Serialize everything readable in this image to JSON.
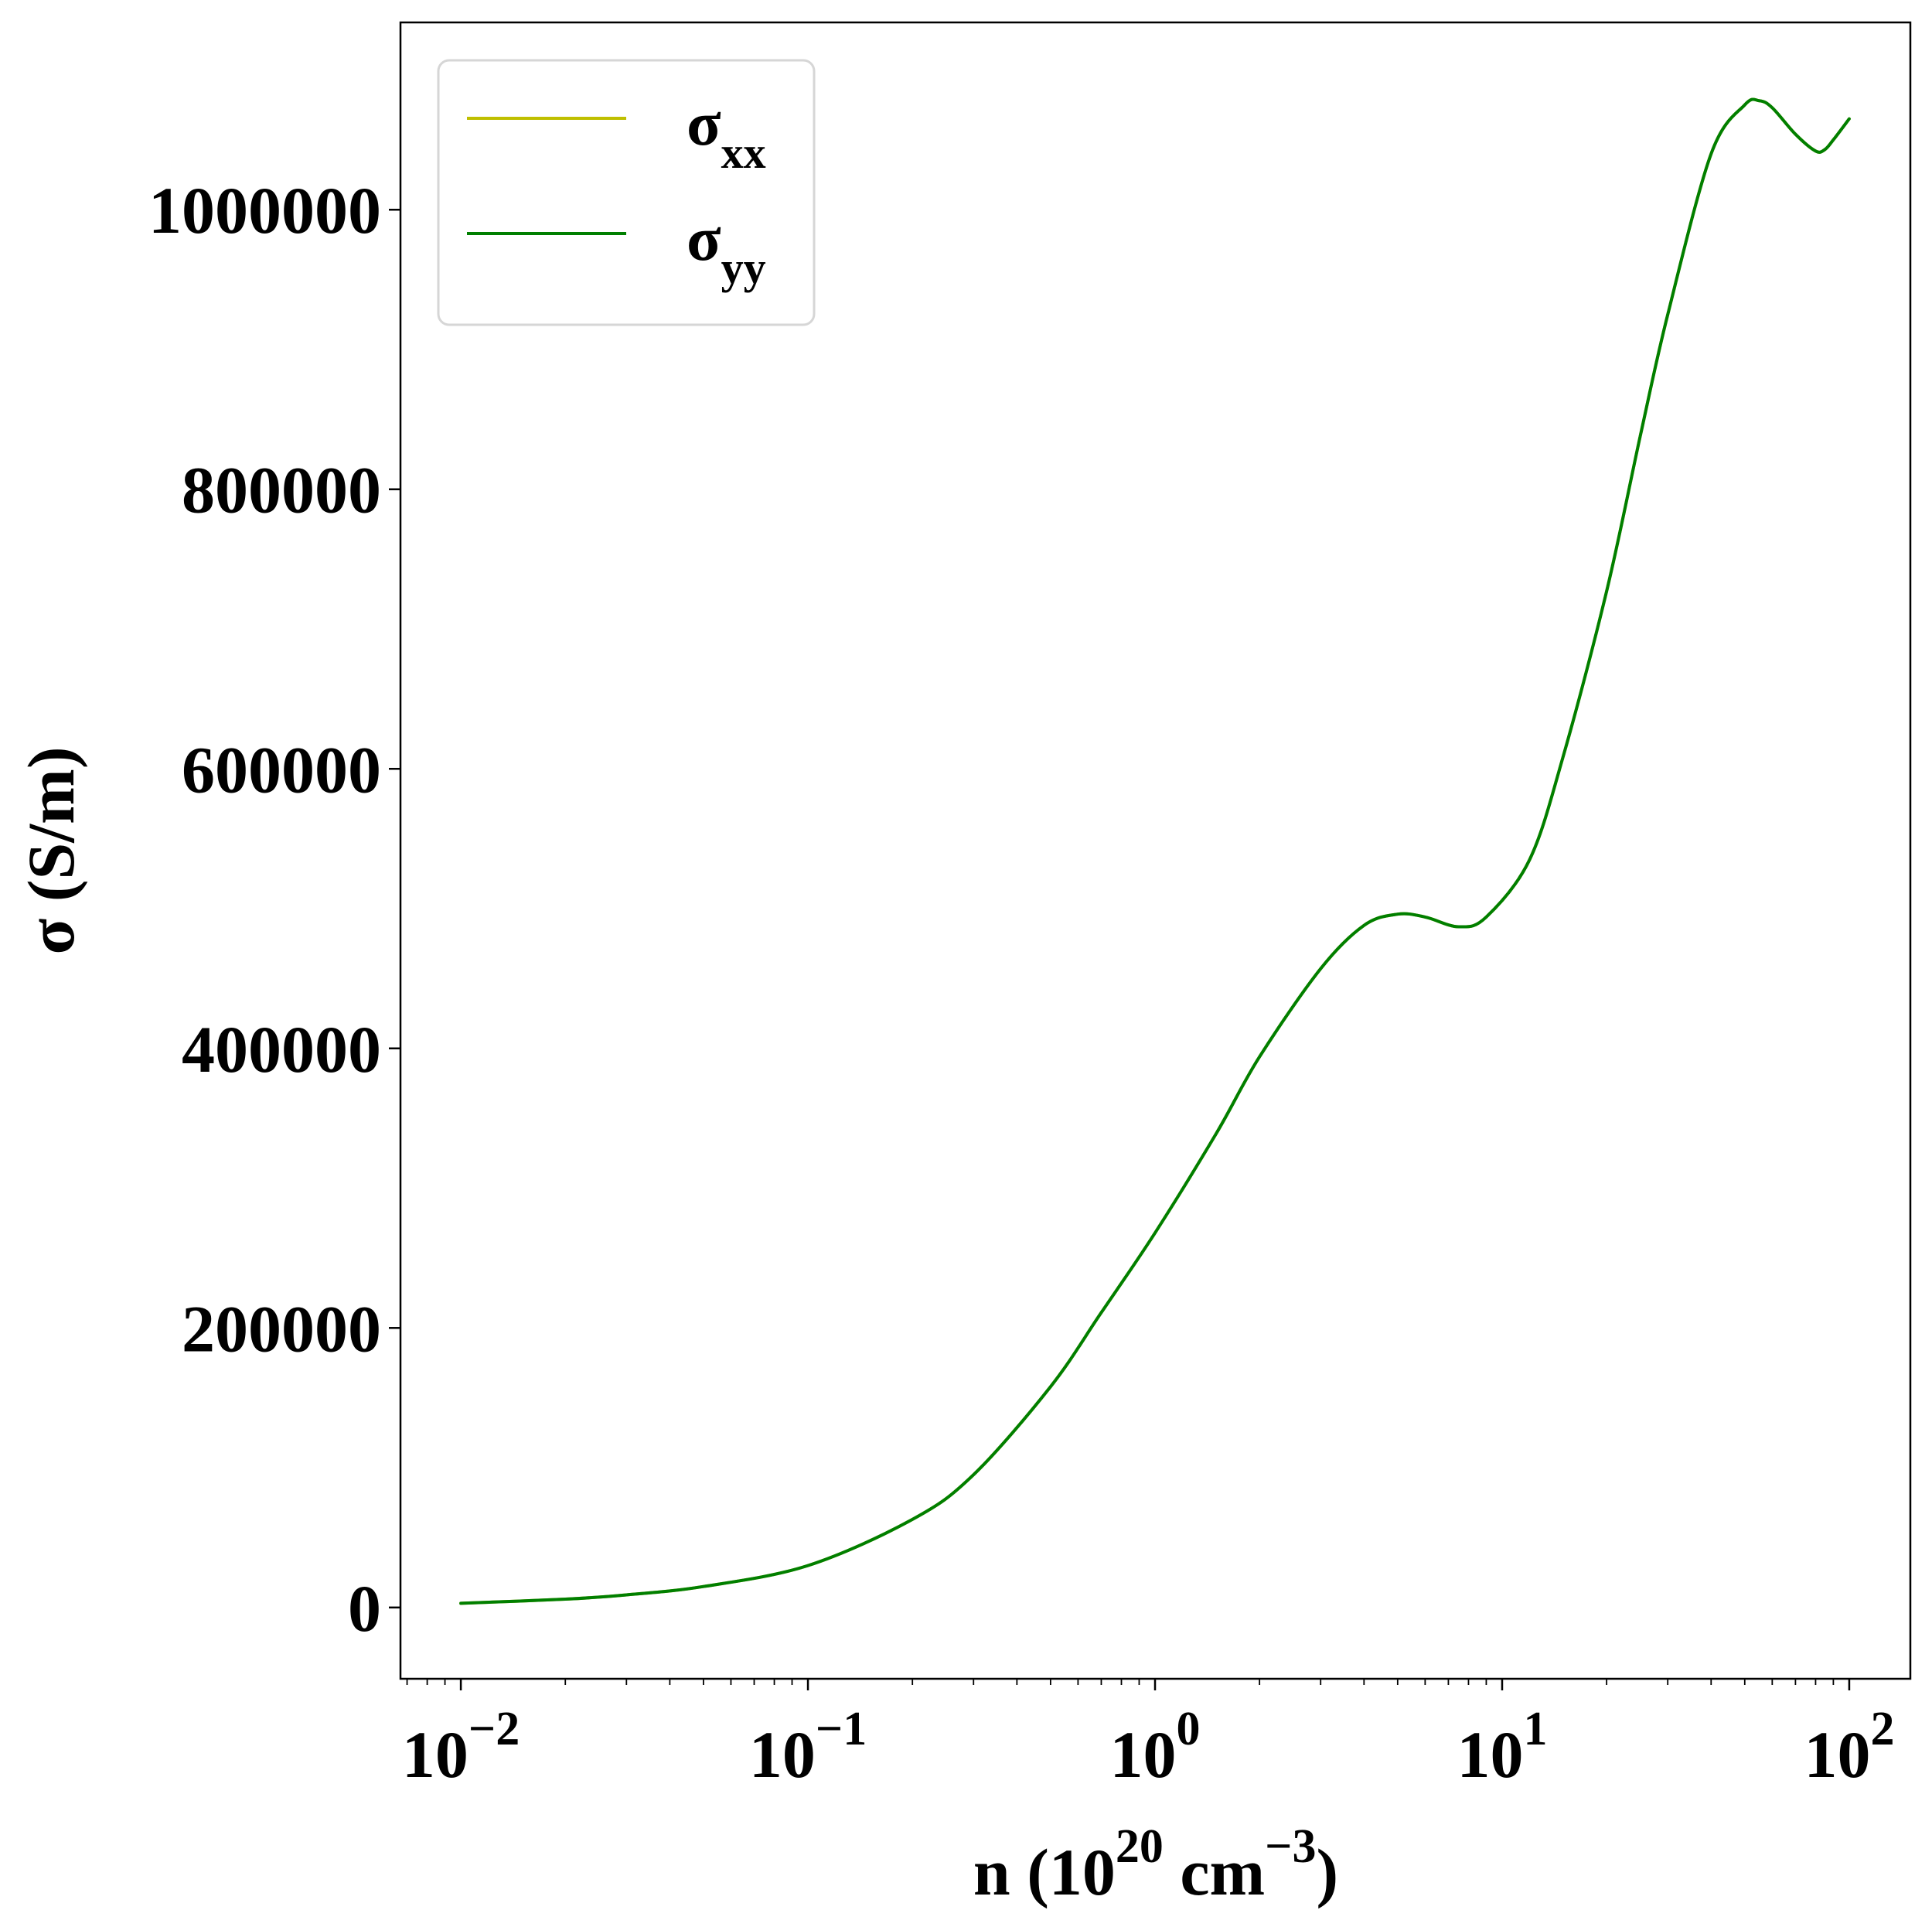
{
  "chart_data": {
    "type": "line",
    "xscale": "log",
    "xlim": [
      0.0067,
      150
    ],
    "ylim": [
      -51000,
      1134000
    ],
    "x_ticks": [
      {
        "value": 0.01,
        "base": "10",
        "exp": "−2"
      },
      {
        "value": 0.1,
        "base": "10",
        "exp": "−1"
      },
      {
        "value": 1,
        "base": "10",
        "exp": "0"
      },
      {
        "value": 10,
        "base": "10",
        "exp": "1"
      },
      {
        "value": 100,
        "base": "10",
        "exp": "2"
      }
    ],
    "y_ticks": [
      {
        "value": 0,
        "label": "0"
      },
      {
        "value": 200000,
        "label": "200000"
      },
      {
        "value": 400000,
        "label": "400000"
      },
      {
        "value": 600000,
        "label": "600000"
      },
      {
        "value": 800000,
        "label": "800000"
      },
      {
        "value": 1000000,
        "label": "1000000"
      }
    ],
    "xlabel": {
      "pre": "n (10",
      "sup1": "20",
      "mid": " cm",
      "sup2": "−3",
      "post": ")"
    },
    "ylabel": "σ (S/m)",
    "grid": false,
    "legend_position": "upper-left",
    "series": [
      {
        "name": "σ",
        "sub": "xx",
        "color": "#bfbf00",
        "x": [
          0.01,
          0.02,
          0.03,
          0.05,
          0.1,
          0.2,
          0.3,
          0.5,
          0.7,
          1.0,
          1.5,
          2.0,
          3.0,
          4.0,
          5.0,
          6.0,
          7.5,
          9.0,
          12.0,
          15.0,
          20.0,
          25.0,
          30.0,
          40.0,
          50.0,
          55.0,
          60.0,
          70.0,
          80.0,
          85.0,
          90.0,
          100.0
        ],
        "y": [
          3000,
          6000,
          9000,
          15000,
          30000,
          63000,
          95000,
          158000,
          211000,
          268000,
          339000,
          394000,
          457000,
          488000,
          496000,
          494000,
          487000,
          494000,
          535000,
          609000,
          727000,
          838000,
          925000,
          1040000,
          1075000,
          1078000,
          1073000,
          1054000,
          1042000,
          1043000,
          1050000,
          1065000
        ]
      },
      {
        "name": "σ",
        "sub": "yy",
        "color": "#007f00",
        "x": [
          0.01,
          0.02,
          0.03,
          0.05,
          0.1,
          0.2,
          0.3,
          0.5,
          0.7,
          1.0,
          1.5,
          2.0,
          3.0,
          4.0,
          5.0,
          6.0,
          7.5,
          9.0,
          12.0,
          15.0,
          20.0,
          25.0,
          30.0,
          40.0,
          50.0,
          55.0,
          60.0,
          70.0,
          80.0,
          85.0,
          90.0,
          100.0
        ],
        "y": [
          3000,
          6000,
          9000,
          15000,
          30000,
          63000,
          95000,
          158000,
          211000,
          268000,
          339000,
          394000,
          457000,
          488000,
          496000,
          494000,
          487000,
          494000,
          535000,
          609000,
          727000,
          838000,
          925000,
          1040000,
          1075000,
          1078000,
          1073000,
          1054000,
          1042000,
          1043000,
          1050000,
          1065000
        ]
      }
    ]
  }
}
